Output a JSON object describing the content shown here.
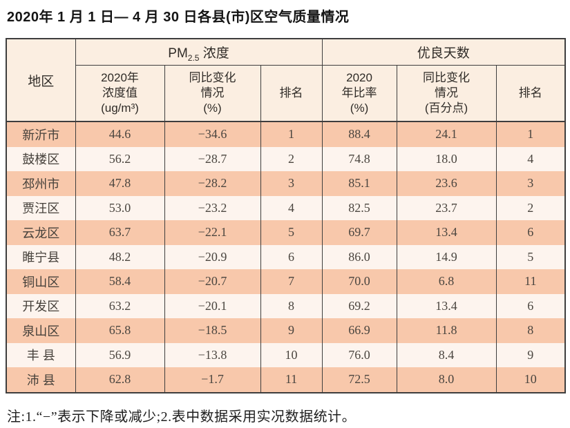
{
  "page": {
    "title": "2020年 1 月 1 日— 4 月 30 日各县(市)区空气质量情况",
    "note": "注:1.“−”表示下降或减少;2.表中数据采用实况数据统计。"
  },
  "colors": {
    "row_odd_bg": "#f8c8ab",
    "row_even_bg": "#fdf4ee",
    "header_bg": "#fbeee1",
    "border": "#3d3d3d",
    "text": "#4a453f",
    "title_text": "#141414"
  },
  "table": {
    "corner_header": "地区",
    "group_pm": {
      "prefix": "PM",
      "sub": "2.5",
      "suffix": " 浓度"
    },
    "group_good_days": "优良天数",
    "sub_headers": [
      "2020年\n浓度值\n(ug/m³)",
      "同比变化\n情况\n(%)",
      "排名",
      "2020\n年比率\n(%)",
      "同比变化\n情况\n(百分点)",
      "排名"
    ],
    "rows": [
      [
        "新沂市",
        "44.6",
        "−34.6",
        "1",
        "88.4",
        "24.1",
        "1"
      ],
      [
        "鼓楼区",
        "56.2",
        "−28.7",
        "2",
        "74.8",
        "18.0",
        "4"
      ],
      [
        "邳州市",
        "47.8",
        "−28.2",
        "3",
        "85.1",
        "23.6",
        "3"
      ],
      [
        "贾汪区",
        "53.0",
        "−23.2",
        "4",
        "82.5",
        "23.7",
        "2"
      ],
      [
        "云龙区",
        "63.7",
        "−22.1",
        "5",
        "69.7",
        "13.4",
        "6"
      ],
      [
        "睢宁县",
        "48.2",
        "−20.9",
        "6",
        "86.0",
        "14.9",
        "5"
      ],
      [
        "铜山区",
        "58.4",
        "−20.7",
        "7",
        "70.0",
        "6.8",
        "11"
      ],
      [
        "开发区",
        "63.2",
        "−20.1",
        "8",
        "69.2",
        "13.4",
        "6"
      ],
      [
        "泉山区",
        "65.8",
        "−18.5",
        "9",
        "66.9",
        "11.8",
        "8"
      ],
      [
        "丰 县",
        "56.9",
        "−13.8",
        "10",
        "76.0",
        "8.4",
        "9"
      ],
      [
        "沛 县",
        "62.8",
        "−1.7",
        "11",
        "72.5",
        "8.0",
        "10"
      ]
    ]
  }
}
